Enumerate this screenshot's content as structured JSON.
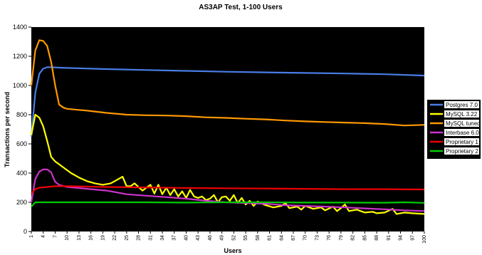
{
  "chart_data": {
    "type": "line",
    "title": "AS3AP Test, 1-100 Users",
    "xlabel": "Users",
    "ylabel": "Transactions per second",
    "xlim": [
      1,
      100
    ],
    "ylim": [
      0,
      1400
    ],
    "yticks": [
      0,
      200,
      400,
      600,
      800,
      1000,
      1200,
      1400
    ],
    "xticks": [
      1,
      4,
      7,
      10,
      13,
      16,
      19,
      22,
      25,
      28,
      31,
      34,
      37,
      40,
      43,
      46,
      49,
      52,
      55,
      58,
      61,
      64,
      67,
      70,
      73,
      76,
      79,
      82,
      85,
      88,
      91,
      94,
      97,
      100
    ],
    "xtick_labels": [
      "1",
      "4",
      "7",
      "10",
      "13",
      "16",
      "19",
      "22",
      "25",
      "28",
      "31",
      "34",
      "37",
      "40",
      "43",
      "46",
      "49",
      "52",
      "55",
      "58",
      "61",
      "64",
      "67",
      "70",
      "73",
      "76",
      "79",
      "82",
      "85",
      "88",
      "91",
      "94",
      "97",
      "100"
    ],
    "grid": false,
    "legend_position": "right",
    "background": "#000000",
    "series": [
      {
        "name": "Postgres 7.0",
        "color": "#4a7de6",
        "points": [
          [
            1,
            650
          ],
          [
            2,
            950
          ],
          [
            3,
            1080
          ],
          [
            4,
            1115
          ],
          [
            5,
            1125
          ],
          [
            6,
            1125
          ],
          [
            8,
            1122
          ],
          [
            10,
            1120
          ],
          [
            15,
            1116
          ],
          [
            20,
            1112
          ],
          [
            30,
            1106
          ],
          [
            40,
            1100
          ],
          [
            50,
            1094
          ],
          [
            60,
            1090
          ],
          [
            70,
            1086
          ],
          [
            80,
            1082
          ],
          [
            90,
            1077
          ],
          [
            100,
            1068
          ]
        ]
      },
      {
        "name": "MySQL 3.22",
        "color": "#ffff00",
        "points": [
          [
            1,
            660
          ],
          [
            2,
            800
          ],
          [
            3,
            780
          ],
          [
            4,
            720
          ],
          [
            5,
            620
          ],
          [
            6,
            510
          ],
          [
            7,
            480
          ],
          [
            9,
            440
          ],
          [
            11,
            400
          ],
          [
            13,
            370
          ],
          [
            15,
            345
          ],
          [
            17,
            330
          ],
          [
            19,
            320
          ],
          [
            21,
            330
          ],
          [
            22,
            345
          ],
          [
            23,
            360
          ],
          [
            24,
            375
          ],
          [
            25,
            310
          ],
          [
            26,
            310
          ],
          [
            27,
            330
          ],
          [
            28,
            305
          ],
          [
            29,
            280
          ],
          [
            30,
            300
          ],
          [
            31,
            320
          ],
          [
            32,
            260
          ],
          [
            33,
            320
          ],
          [
            34,
            255
          ],
          [
            35,
            300
          ],
          [
            36,
            250
          ],
          [
            37,
            290
          ],
          [
            38,
            240
          ],
          [
            39,
            275
          ],
          [
            40,
            230
          ],
          [
            41,
            285
          ],
          [
            42,
            240
          ],
          [
            43,
            230
          ],
          [
            44,
            240
          ],
          [
            45,
            215
          ],
          [
            46,
            225
          ],
          [
            47,
            250
          ],
          [
            48,
            200
          ],
          [
            49,
            235
          ],
          [
            50,
            240
          ],
          [
            51,
            210
          ],
          [
            52,
            250
          ],
          [
            53,
            195
          ],
          [
            54,
            230
          ],
          [
            55,
            185
          ],
          [
            56,
            210
          ],
          [
            57,
            175
          ],
          [
            58,
            205
          ],
          [
            60,
            180
          ],
          [
            62,
            165
          ],
          [
            64,
            175
          ],
          [
            65,
            195
          ],
          [
            66,
            160
          ],
          [
            68,
            170
          ],
          [
            69,
            150
          ],
          [
            70,
            175
          ],
          [
            72,
            155
          ],
          [
            74,
            165
          ],
          [
            75,
            145
          ],
          [
            77,
            170
          ],
          [
            78,
            140
          ],
          [
            79,
            160
          ],
          [
            80,
            185
          ],
          [
            81,
            140
          ],
          [
            83,
            150
          ],
          [
            85,
            130
          ],
          [
            87,
            135
          ],
          [
            88,
            125
          ],
          [
            90,
            130
          ],
          [
            92,
            155
          ],
          [
            93,
            120
          ],
          [
            95,
            130
          ],
          [
            97,
            125
          ],
          [
            100,
            120
          ]
        ]
      },
      {
        "name": "MySQL tuned",
        "color": "#ff9900",
        "points": [
          [
            1,
            1000
          ],
          [
            2,
            1240
          ],
          [
            3,
            1310
          ],
          [
            4,
            1305
          ],
          [
            5,
            1270
          ],
          [
            6,
            1160
          ],
          [
            7,
            1000
          ],
          [
            8,
            870
          ],
          [
            9,
            850
          ],
          [
            10,
            840
          ],
          [
            15,
            828
          ],
          [
            20,
            812
          ],
          [
            25,
            800
          ],
          [
            30,
            796
          ],
          [
            35,
            794
          ],
          [
            40,
            790
          ],
          [
            45,
            782
          ],
          [
            50,
            778
          ],
          [
            55,
            772
          ],
          [
            60,
            768
          ],
          [
            65,
            760
          ],
          [
            70,
            754
          ],
          [
            75,
            750
          ],
          [
            80,
            746
          ],
          [
            85,
            742
          ],
          [
            90,
            736
          ],
          [
            95,
            726
          ],
          [
            100,
            730
          ]
        ]
      },
      {
        "name": "Interbase 6.0",
        "color": "#cc33cc",
        "points": [
          [
            1,
            200
          ],
          [
            2,
            360
          ],
          [
            3,
            410
          ],
          [
            4,
            425
          ],
          [
            5,
            425
          ],
          [
            6,
            405
          ],
          [
            7,
            340
          ],
          [
            8,
            320
          ],
          [
            10,
            305
          ],
          [
            12,
            300
          ],
          [
            14,
            295
          ],
          [
            16,
            290
          ],
          [
            18,
            285
          ],
          [
            20,
            280
          ],
          [
            25,
            255
          ],
          [
            30,
            245
          ],
          [
            35,
            235
          ],
          [
            40,
            225
          ],
          [
            45,
            210
          ],
          [
            50,
            200
          ],
          [
            55,
            195
          ],
          [
            60,
            190
          ],
          [
            65,
            180
          ],
          [
            70,
            175
          ],
          [
            75,
            170
          ],
          [
            80,
            165
          ],
          [
            85,
            158
          ],
          [
            90,
            152
          ],
          [
            95,
            145
          ],
          [
            100,
            140
          ]
        ]
      },
      {
        "name": "Proprietary 1",
        "color": "#ee0000",
        "points": [
          [
            1,
            260
          ],
          [
            2,
            290
          ],
          [
            3,
            300
          ],
          [
            5,
            305
          ],
          [
            7,
            310
          ],
          [
            10,
            310
          ],
          [
            20,
            305
          ],
          [
            30,
            302
          ],
          [
            40,
            298
          ],
          [
            50,
            296
          ],
          [
            60,
            294
          ],
          [
            70,
            292
          ],
          [
            80,
            290
          ],
          [
            90,
            290
          ],
          [
            100,
            288
          ]
        ]
      },
      {
        "name": "Proprietary 2",
        "color": "#00cc00",
        "points": [
          [
            1,
            170
          ],
          [
            2,
            200
          ],
          [
            5,
            200
          ],
          [
            10,
            200
          ],
          [
            20,
            200
          ],
          [
            30,
            200
          ],
          [
            40,
            198
          ],
          [
            50,
            200
          ],
          [
            60,
            200
          ],
          [
            70,
            198
          ],
          [
            80,
            198
          ],
          [
            90,
            197
          ],
          [
            95,
            200
          ],
          [
            100,
            196
          ]
        ]
      }
    ]
  }
}
